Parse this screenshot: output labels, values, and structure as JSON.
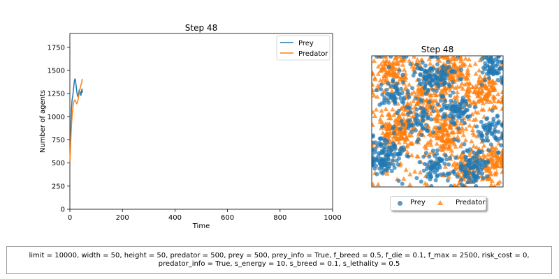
{
  "chart_data": [
    {
      "type": "line",
      "title": "Step 48",
      "xlabel": "Time",
      "ylabel": "Number of agents",
      "xlim": [
        0,
        1000
      ],
      "ylim": [
        0,
        1900
      ],
      "xticks": [
        0,
        200,
        400,
        600,
        800,
        1000
      ],
      "yticks": [
        0,
        250,
        500,
        750,
        1000,
        1250,
        1500,
        1750
      ],
      "legend_position": "top-right",
      "series": [
        {
          "name": "Prey",
          "color": "#1f77b4",
          "x": [
            0,
            2,
            4,
            6,
            8,
            10,
            12,
            14,
            16,
            18,
            20,
            22,
            24,
            26,
            28,
            30,
            32,
            34,
            36,
            38,
            40,
            42,
            44,
            46,
            48
          ],
          "y": [
            500,
            700,
            920,
            1080,
            1170,
            1210,
            1250,
            1300,
            1360,
            1400,
            1410,
            1380,
            1330,
            1280,
            1240,
            1220,
            1230,
            1260,
            1290,
            1280,
            1250,
            1230,
            1270,
            1300,
            1260
          ]
        },
        {
          "name": "Predator",
          "color": "#ff7f0e",
          "x": [
            0,
            2,
            4,
            6,
            8,
            10,
            12,
            14,
            16,
            18,
            20,
            22,
            24,
            26,
            28,
            30,
            32,
            34,
            36,
            38,
            40,
            42,
            44,
            46,
            48
          ],
          "y": [
            500,
            640,
            780,
            900,
            990,
            1060,
            1110,
            1150,
            1170,
            1180,
            1180,
            1170,
            1150,
            1140,
            1150,
            1170,
            1200,
            1230,
            1260,
            1290,
            1320,
            1340,
            1360,
            1390,
            1410
          ]
        }
      ]
    },
    {
      "type": "scatter",
      "title": "Step 48",
      "grid_extent": [
        0,
        50
      ],
      "legend_position": "bottom-center",
      "series": [
        {
          "name": "Prey",
          "marker": "circle",
          "color": "#1f77b4",
          "clusters": [
            {
              "cx": 5,
              "cy": 12,
              "r": 6,
              "n": 110
            },
            {
              "cx": 24,
              "cy": 42,
              "r": 6,
              "n": 110
            },
            {
              "cx": 32,
              "cy": 30,
              "r": 5,
              "n": 70
            },
            {
              "cx": 46,
              "cy": 46,
              "r": 5,
              "n": 60
            },
            {
              "cx": 38,
              "cy": 7,
              "r": 6,
              "n": 90
            },
            {
              "cx": 25,
              "cy": 8,
              "r": 5,
              "n": 60
            },
            {
              "cx": 18,
              "cy": 26,
              "r": 5,
              "n": 50
            },
            {
              "cx": 46,
              "cy": 22,
              "r": 5,
              "n": 55
            },
            {
              "cx": 9,
              "cy": 35,
              "r": 5,
              "n": 45
            }
          ],
          "scattered_count": 100
        },
        {
          "name": "Predator",
          "marker": "triangle",
          "color": "#ff7f0e",
          "clusters": [
            {
              "cx": 10,
              "cy": 22,
              "r": 8,
              "n": 180
            },
            {
              "cx": 30,
              "cy": 44,
              "r": 7,
              "n": 140
            },
            {
              "cx": 28,
              "cy": 20,
              "r": 7,
              "n": 130
            },
            {
              "cx": 42,
              "cy": 36,
              "r": 7,
              "n": 120
            },
            {
              "cx": 8,
              "cy": 44,
              "r": 6,
              "n": 90
            },
            {
              "cx": 45,
              "cy": 10,
              "r": 6,
              "n": 90
            },
            {
              "cx": 20,
              "cy": 34,
              "r": 6,
              "n": 80
            },
            {
              "cx": 36,
              "cy": 6,
              "r": 5,
              "n": 60
            }
          ],
          "scattered_count": 260
        }
      ]
    }
  ],
  "params_text": "limit = 10000, width = 50, height = 50, predator = 500, prey = 500, prey_info = True, f_breed = 0.5, f_die = 0.1, f_max = 2500, risk_cost = 0, predator_info = True, s_energy = 10, s_breed = 0.1, s_lethality = 0.5"
}
